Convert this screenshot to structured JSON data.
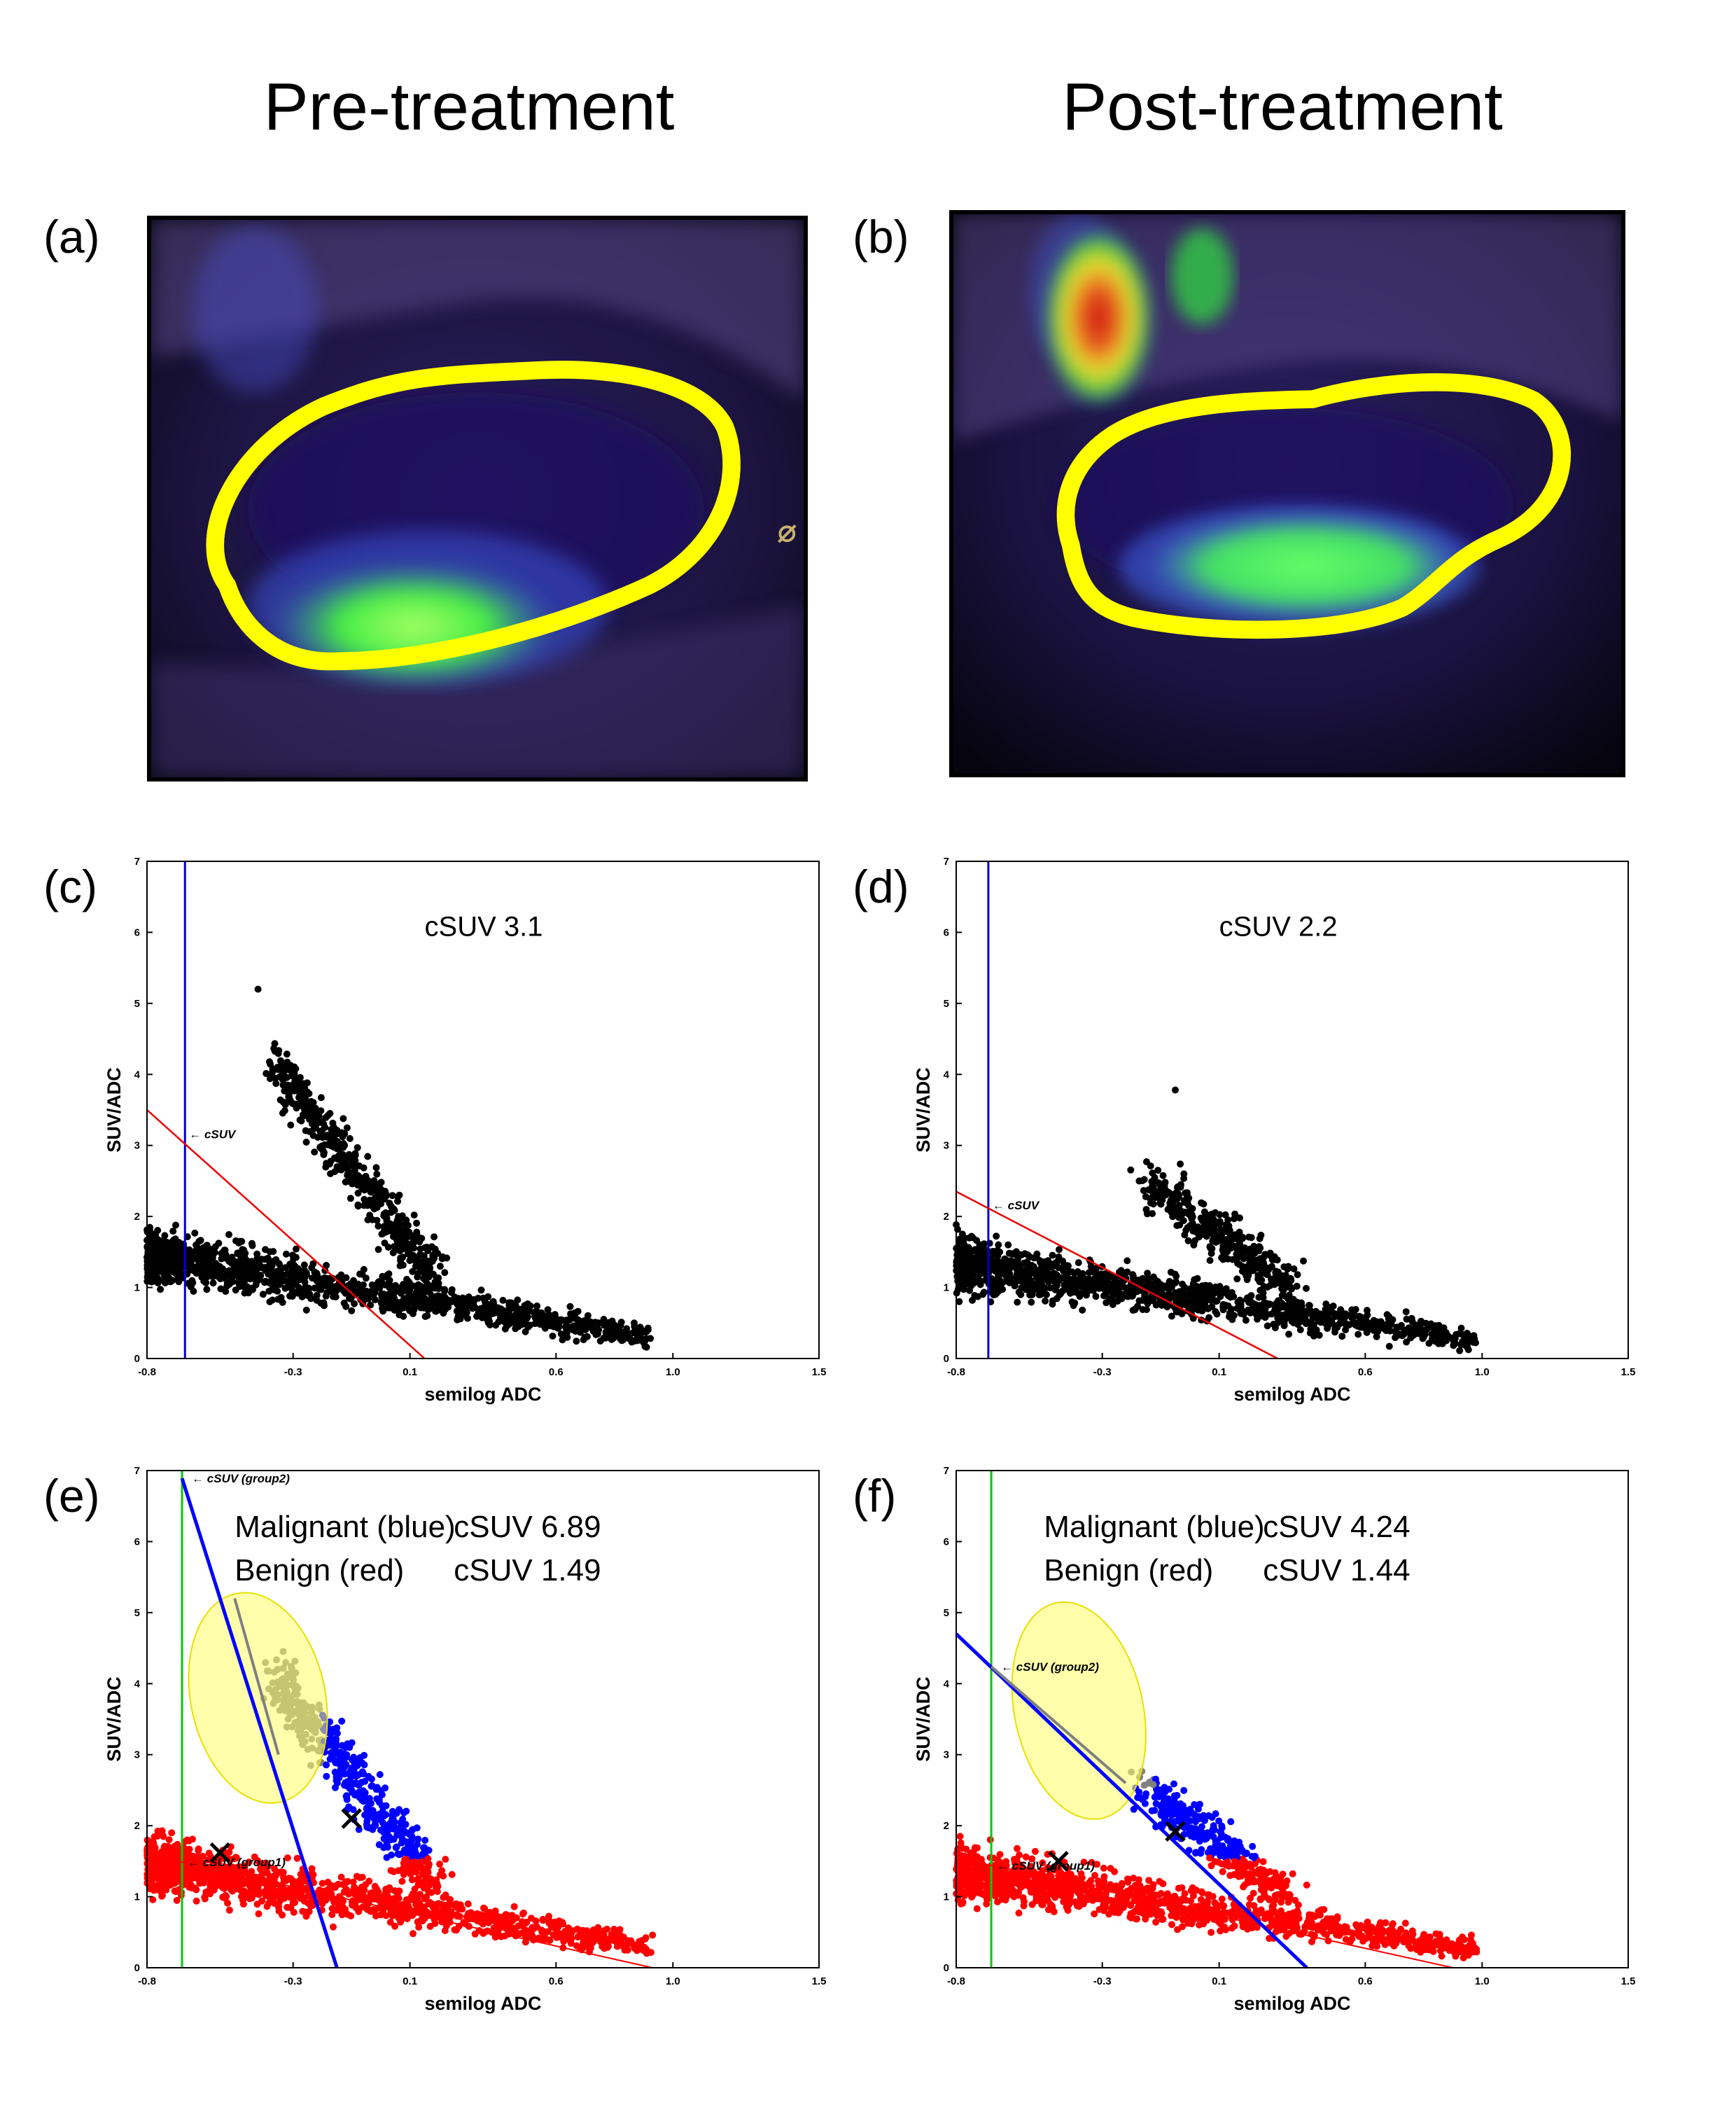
{
  "titles": {
    "pre": "Pre-treatment",
    "post": "Post-treatment"
  },
  "panel_labels": {
    "a": "(a)",
    "b": "(b)",
    "c": "(c)",
    "d": "(d)",
    "e": "(e)",
    "f": "(f)"
  },
  "images": {
    "a": {
      "description_icon": "pet-mri-fusion-image",
      "roi_color": "#ffff00"
    },
    "b": {
      "description_icon": "pet-mri-fusion-image",
      "roi_color": "#ffff00"
    }
  },
  "colors": {
    "scatter": "#000000",
    "malignant": "#0000ff",
    "benign": "#ff0000",
    "outlier": "#808080",
    "ellipse": "#ffff66",
    "vline_cd": "#0000cc",
    "vline_ef": "#00cc00"
  },
  "chart_data": [
    {
      "id": "c",
      "type": "scatter",
      "xlabel": "semilog ADC",
      "ylabel": "SUV/ADC",
      "xlim": [
        -0.8,
        1.5
      ],
      "ylim": [
        0,
        7
      ],
      "xticks": [
        "-0.8",
        "-0.3",
        "0.1",
        "0.6",
        "1.0",
        "1.5"
      ],
      "xtick_values": [
        -0.8,
        -0.3,
        0.1,
        0.6,
        1.0,
        1.5
      ],
      "yticks": [
        "0",
        "1",
        "2",
        "3",
        "4",
        "5",
        "6",
        "7"
      ],
      "annotation": "cSUV 3.1",
      "marker_label": "cSUV",
      "vline_x": -0.67,
      "fit_line": [
        [
          -0.8,
          3.5
        ],
        [
          0.15,
          0.0
        ]
      ],
      "cluster_main": {
        "x": [
          -0.8,
          0.95
        ],
        "y_start": 1.5,
        "y_end": 0.3
      },
      "cluster_peak": {
        "x_center": -0.3,
        "y_center": 3.2
      },
      "max_point": [
        -0.42,
        5.2
      ]
    },
    {
      "id": "d",
      "type": "scatter",
      "xlabel": "semilog ADC",
      "ylabel": "SUV/ADC",
      "xlim": [
        -0.8,
        1.5
      ],
      "ylim": [
        0,
        7
      ],
      "xticks": [
        "-0.8",
        "-0.3",
        "0.1",
        "0.6",
        "1.0",
        "1.5"
      ],
      "xtick_values": [
        -0.8,
        -0.3,
        0.1,
        0.6,
        1.0,
        1.5
      ],
      "yticks": [
        "0",
        "1",
        "2",
        "3",
        "4",
        "5",
        "6",
        "7"
      ],
      "annotation": "cSUV 2.2",
      "marker_label": "cSUV",
      "vline_x": -0.69,
      "fit_line": [
        [
          -0.8,
          2.35
        ],
        [
          0.3,
          0.0
        ]
      ],
      "cluster_main": {
        "x": [
          -0.8,
          0.98
        ],
        "y_start": 1.4,
        "y_end": 0.25
      },
      "cluster_peak": {
        "x_center": -0.1,
        "y_center": 2.2
      },
      "max_point": [
        -0.05,
        3.78
      ]
    },
    {
      "id": "e",
      "type": "scatter",
      "xlabel": "semilog ADC",
      "ylabel": "SUV/ADC",
      "xlim": [
        -0.8,
        1.5
      ],
      "ylim": [
        0,
        7
      ],
      "xticks": [
        "-0.8",
        "-0.3",
        "0.1",
        "0.6",
        "1.0",
        "1.5"
      ],
      "xtick_values": [
        -0.8,
        -0.3,
        0.1,
        0.6,
        1.0,
        1.5
      ],
      "yticks": [
        "0",
        "1",
        "2",
        "3",
        "4",
        "5",
        "6",
        "7"
      ],
      "legend": [
        {
          "label": "Malignant (blue)",
          "value": "cSUV 6.89"
        },
        {
          "label": "Benign (red)",
          "value": "cSUV 1.49"
        }
      ],
      "labels": {
        "group2": "cSUV (group2)",
        "group1": "cSUV (group1)"
      },
      "vline_x": -0.68,
      "blue_line": [
        [
          -0.68,
          6.89
        ],
        [
          -0.15,
          0.0
        ]
      ],
      "red_line": [
        [
          -0.8,
          1.6
        ],
        [
          0.93,
          0.0
        ]
      ],
      "gray_line": [
        [
          -0.5,
          5.2
        ],
        [
          -0.35,
          3.0
        ]
      ],
      "centroid_malignant": [
        -0.1,
        2.1
      ],
      "centroid_benign": [
        -0.55,
        1.62
      ],
      "ellipse": {
        "cx": -0.42,
        "cy": 3.8,
        "rx": 0.23,
        "ry": 1.5
      }
    },
    {
      "id": "f",
      "type": "scatter",
      "xlabel": "semilog ADC",
      "ylabel": "SUV/ADC",
      "xlim": [
        -0.8,
        1.5
      ],
      "ylim": [
        0,
        7
      ],
      "xticks": [
        "-0.8",
        "-0.3",
        "0.1",
        "0.6",
        "1.0",
        "1.5"
      ],
      "xtick_values": [
        -0.8,
        -0.3,
        0.1,
        0.6,
        1.0,
        1.5
      ],
      "yticks": [
        "0",
        "1",
        "2",
        "3",
        "4",
        "5",
        "6",
        "7"
      ],
      "legend": [
        {
          "label": "Malignant (blue)",
          "value": "cSUV 4.24"
        },
        {
          "label": "Benign (red)",
          "value": "cSUV 1.44"
        }
      ],
      "labels": {
        "group2": "cSUV (group2)",
        "group1": "cSUV (group1)"
      },
      "vline_x": -0.68,
      "blue_line": [
        [
          -0.8,
          4.7
        ],
        [
          0.4,
          0.0
        ]
      ],
      "red_line": [
        [
          -0.8,
          1.55
        ],
        [
          0.9,
          0.0
        ]
      ],
      "gray_line": [
        [
          -0.68,
          4.24
        ],
        [
          -0.22,
          2.6
        ]
      ],
      "centroid_malignant": [
        -0.05,
        1.92
      ],
      "centroid_benign": [
        -0.45,
        1.5
      ],
      "ellipse": {
        "cx": -0.38,
        "cy": 3.62,
        "rx": 0.22,
        "ry": 1.55
      }
    }
  ]
}
